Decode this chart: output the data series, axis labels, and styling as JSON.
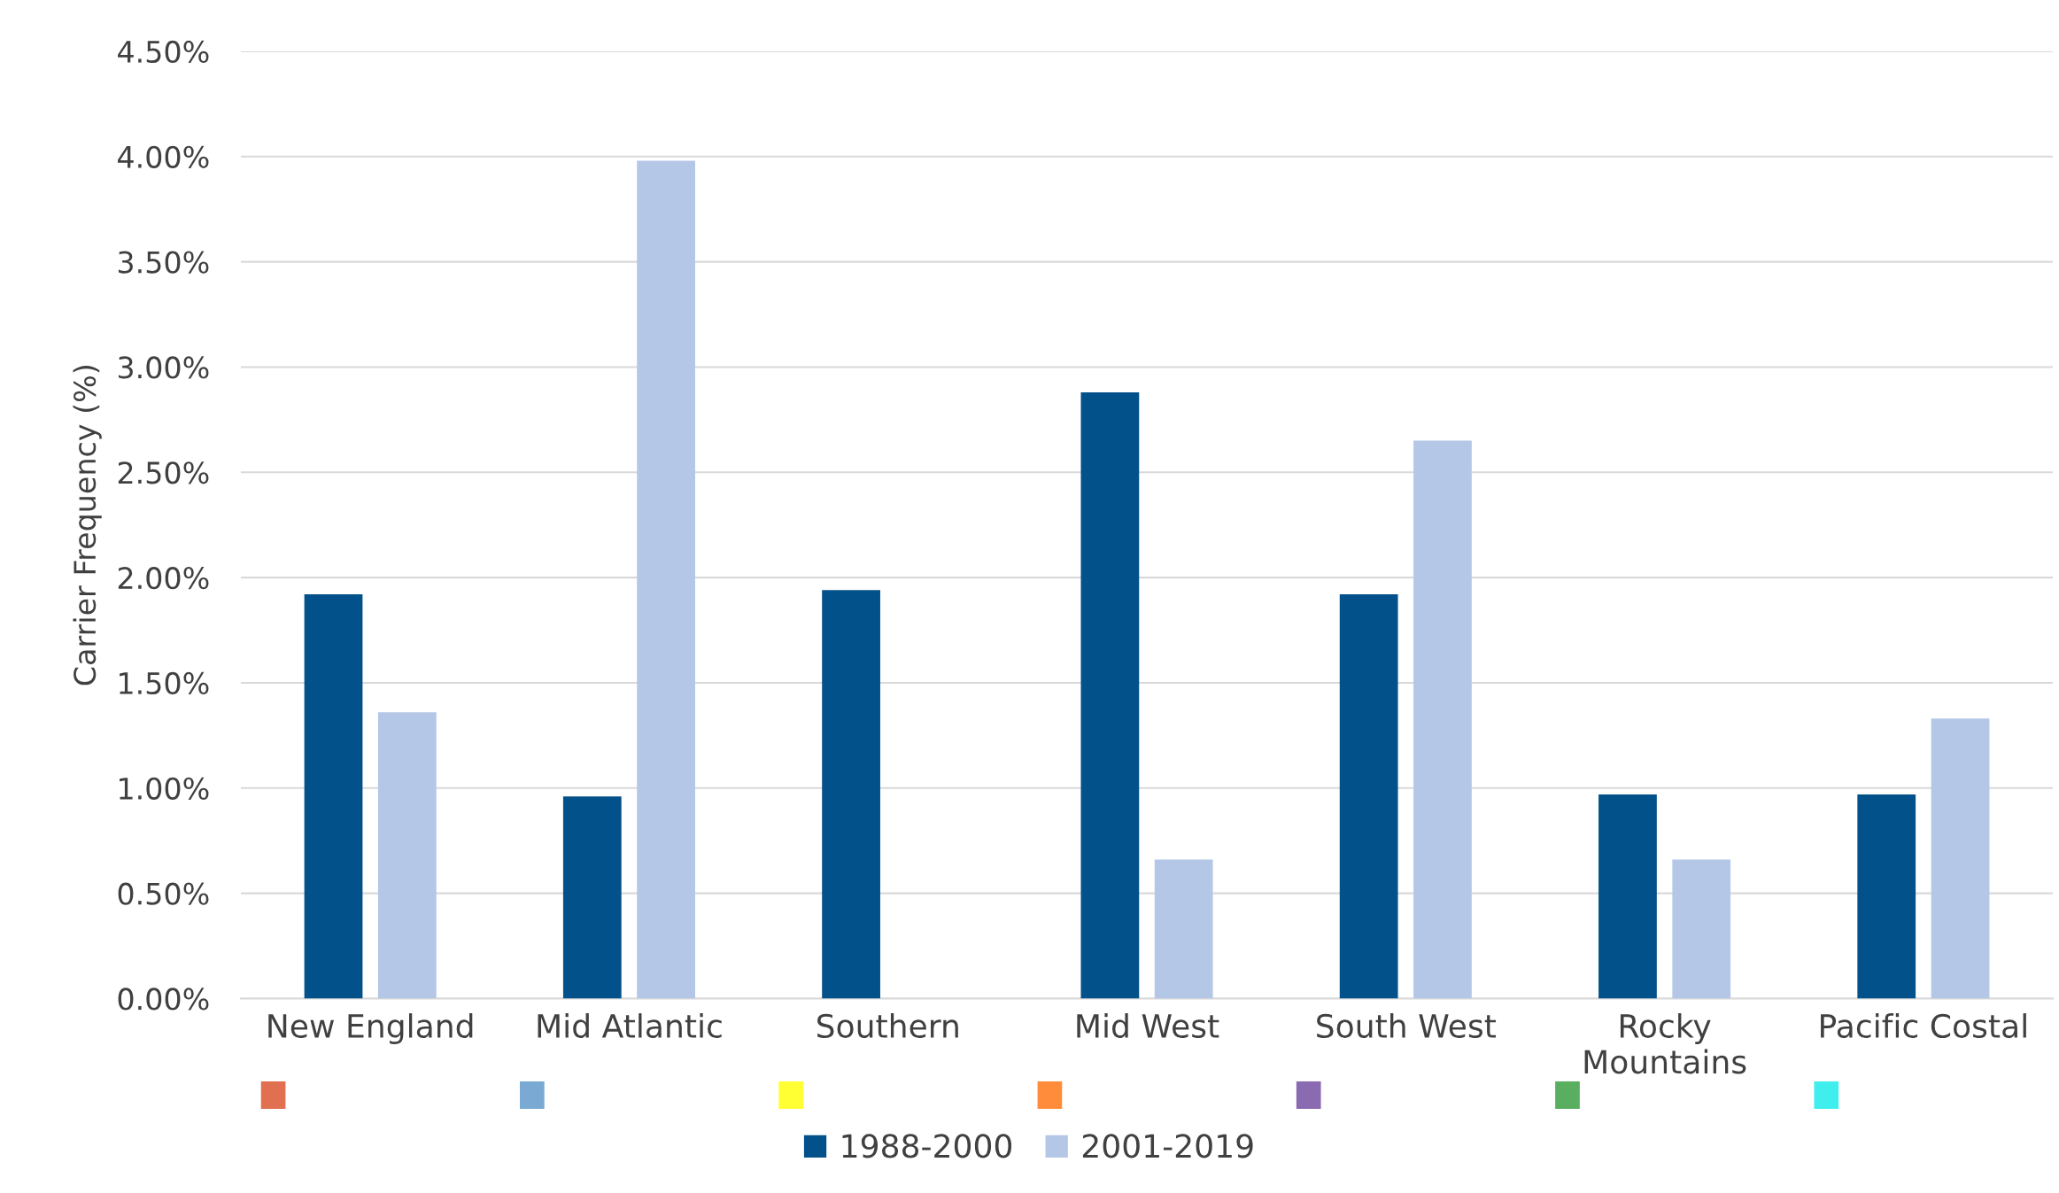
{
  "chart_data": {
    "type": "bar",
    "ylabel": "Carrier Frequency (%)",
    "categories": [
      "New England",
      "Mid Atlantic",
      "Southern",
      "Mid West",
      "South West",
      "Rocky Mountains",
      "Pacific Costal"
    ],
    "series": [
      {
        "name": "1988-2000",
        "color": "#03518a",
        "values": [
          1.92,
          0.96,
          1.94,
          2.88,
          1.92,
          0.97,
          0.97
        ]
      },
      {
        "name": "2001-2019",
        "color": "#b4c7e7",
        "values": [
          1.36,
          3.98,
          null,
          0.66,
          2.65,
          0.66,
          1.33
        ]
      }
    ],
    "ylim": [
      0,
      4.5
    ],
    "yticks": [
      {
        "value": 0,
        "label": "0.00%"
      },
      {
        "value": 0.5,
        "label": "0.50%"
      },
      {
        "value": 1,
        "label": "1.00%"
      },
      {
        "value": 1.5,
        "label": "1.50%"
      },
      {
        "value": 2,
        "label": "2.00%"
      },
      {
        "value": 2.5,
        "label": "2.50%"
      },
      {
        "value": 3,
        "label": "3.00%"
      },
      {
        "value": 3.5,
        "label": "3.50%"
      },
      {
        "value": 4,
        "label": "4.00%"
      },
      {
        "value": 4.5,
        "label": "4.50%"
      }
    ],
    "grid": "y",
    "legend": "bottom"
  }
}
